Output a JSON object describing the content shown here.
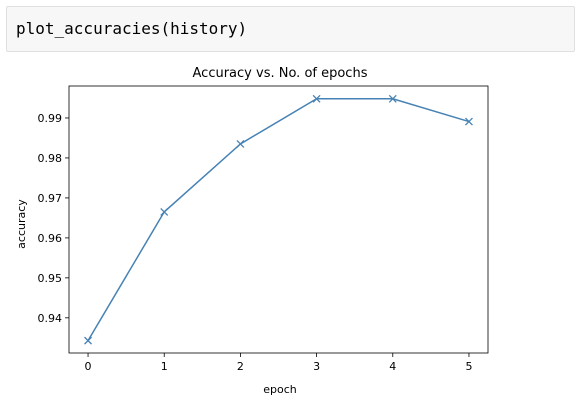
{
  "cell": {
    "code": "plot_accuracies(history)"
  },
  "chart_data": {
    "type": "line",
    "title": "Accuracy vs. No. of epochs",
    "xlabel": "epoch",
    "ylabel": "accuracy",
    "x": [
      0,
      1,
      2,
      3,
      4,
      5
    ],
    "series": [
      {
        "values": [
          0.9343,
          0.9665,
          0.9835,
          0.9948,
          0.9948,
          0.9891
        ],
        "color": "#4682b4",
        "marker": "x"
      }
    ],
    "x_ticks": [
      "0",
      "1",
      "2",
      "3",
      "4",
      "5"
    ],
    "y_ticks": [
      "0.94",
      "0.95",
      "0.96",
      "0.97",
      "0.98",
      "0.99"
    ],
    "xlim": [
      -0.25,
      5.25
    ],
    "ylim": [
      0.9312,
      0.998
    ],
    "grid": false
  }
}
